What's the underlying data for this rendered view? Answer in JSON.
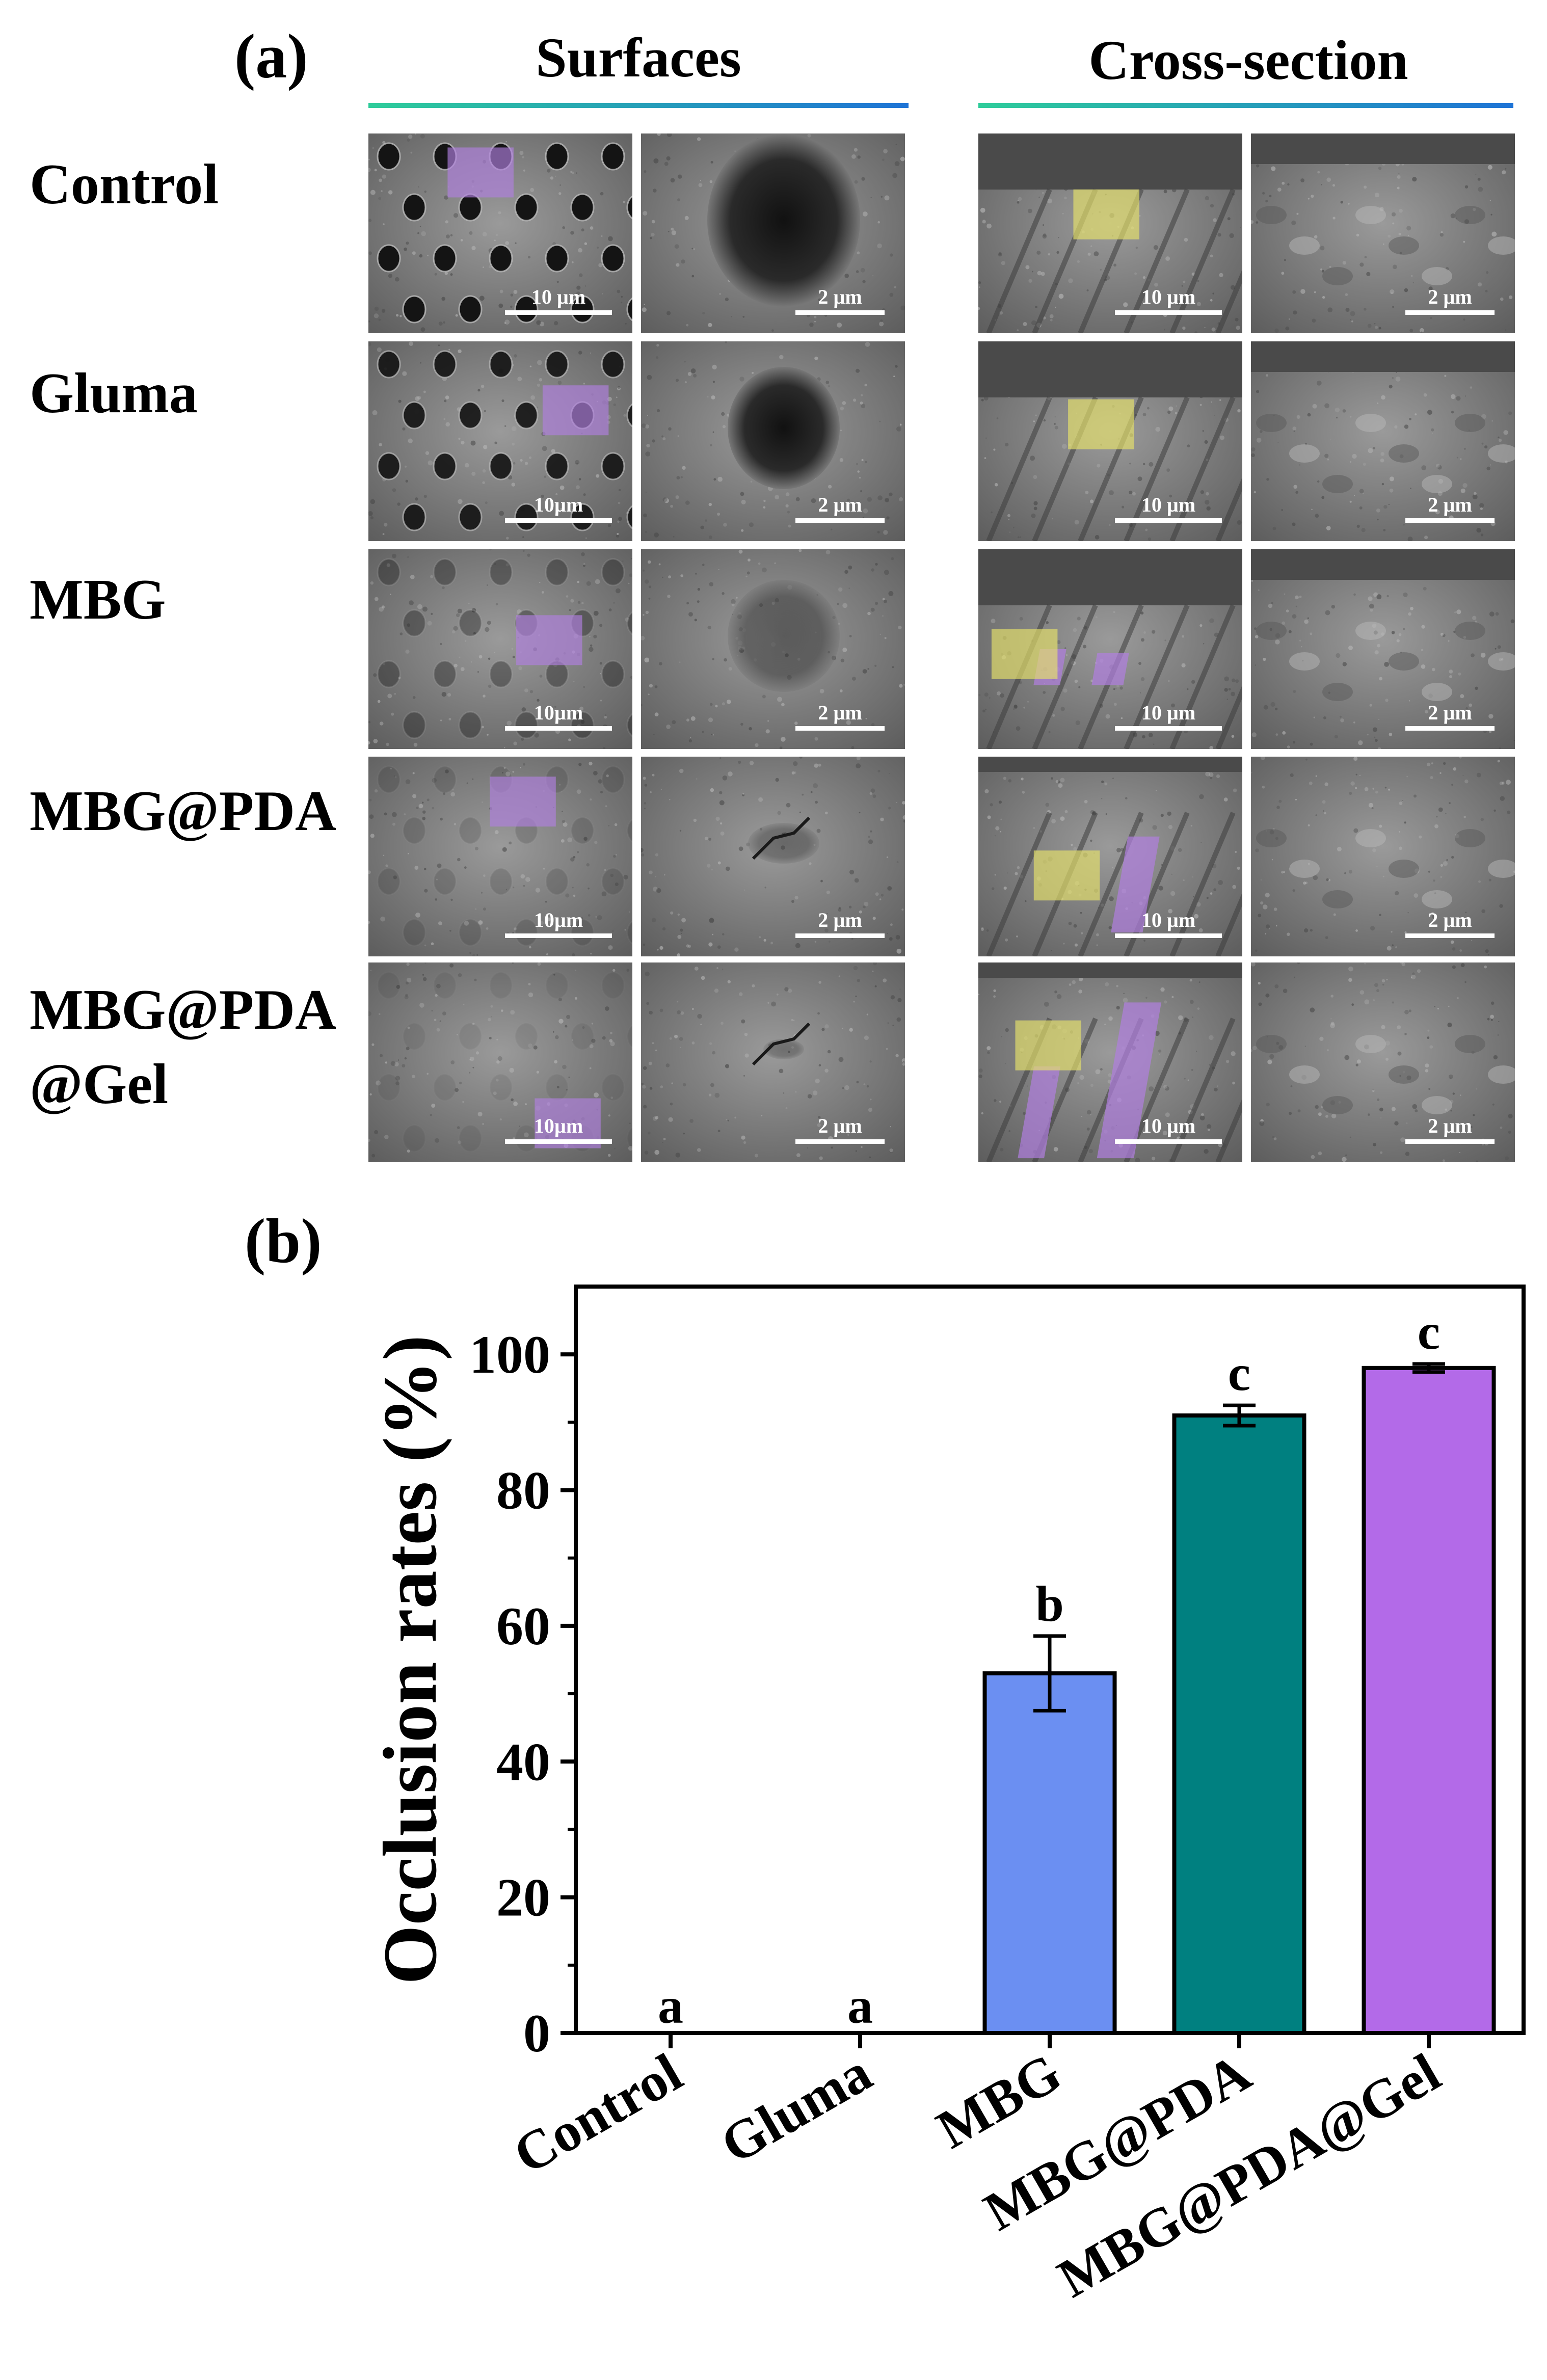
{
  "panel_a": {
    "letter": "(a)",
    "columns": [
      {
        "title": "Surfaces",
        "gradient": [
          "#2ecc9a",
          "#1e73d6"
        ]
      },
      {
        "title": "Cross-section",
        "gradient": [
          "#2ecc9a",
          "#1e73d6"
        ]
      }
    ],
    "rows": [
      {
        "label": "Control",
        "label_line2": "",
        "scales": [
          "10 µm",
          "2 µm",
          "10 µm",
          "2 µm"
        ]
      },
      {
        "label": "Gluma",
        "label_line2": "",
        "scales": [
          "10µm",
          "2 µm",
          "10 µm",
          "2 µm"
        ]
      },
      {
        "label": "MBG",
        "label_line2": "",
        "scales": [
          "10µm",
          "2 µm",
          "10 µm",
          "2 µm"
        ]
      },
      {
        "label": "MBG@PDA",
        "label_line2": "",
        "scales": [
          "10µm",
          "2 µm",
          "10 µm",
          "2 µm"
        ]
      },
      {
        "label": "MBG@PDA",
        "label_line2": "@Gel",
        "scales": [
          "10µm",
          "2 µm",
          "10 µm",
          "2 µm"
        ]
      }
    ],
    "highlight_colors": {
      "purple": "#b07fe0",
      "yellow": "#e8e36a"
    }
  },
  "panel_b": {
    "letter": "(b)"
  },
  "chart_data": {
    "type": "bar",
    "title": "",
    "xlabel": "",
    "ylabel": "Occlusion rates (%)",
    "ylim": [
      0,
      110
    ],
    "yticks": [
      0,
      20,
      40,
      60,
      80,
      100
    ],
    "categories": [
      "Control",
      "Gluma",
      "MBG",
      "MBG@PDA",
      "MBG@PDA@Gel"
    ],
    "series": [
      {
        "values": [
          0,
          0,
          53,
          91,
          98
        ],
        "errors": [
          0,
          0,
          5.5,
          1.5,
          0.6
        ],
        "colors": [
          "#6b8ff2",
          "#6b8ff2",
          "#6b8ff2",
          "#008080",
          "#b36ae8"
        ],
        "significance": [
          "a",
          "a",
          "b",
          "c",
          "c"
        ]
      }
    ],
    "grid": false,
    "legend": "none"
  }
}
